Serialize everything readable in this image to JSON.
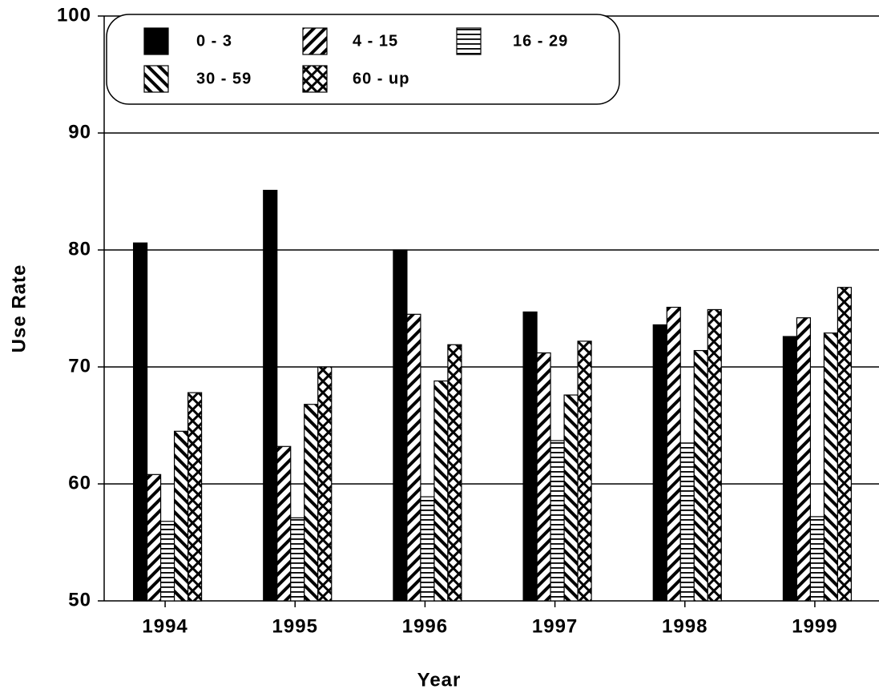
{
  "chart_data": {
    "type": "bar",
    "x_label": "Year",
    "y_label": "Use Rate",
    "categories": [
      "1994",
      "1995",
      "1996",
      "1997",
      "1998",
      "1999"
    ],
    "series": [
      {
        "name": "0 - 3",
        "color": "#000000",
        "pattern": "solid",
        "values": [
          80.6,
          85.1,
          80.0,
          74.7,
          73.6,
          72.6
        ]
      },
      {
        "name": "4 - 15",
        "color": "#000000",
        "pattern": "diagonal-down",
        "values": [
          60.8,
          63.2,
          74.5,
          71.2,
          75.1,
          74.2
        ]
      },
      {
        "name": "16 - 29",
        "color": "#000000",
        "pattern": "horizontal",
        "values": [
          56.8,
          57.1,
          58.9,
          63.7,
          63.5,
          57.2
        ]
      },
      {
        "name": "30 - 59",
        "color": "#000000",
        "pattern": "diagonal-up",
        "values": [
          64.5,
          66.8,
          68.8,
          67.6,
          71.4,
          72.9
        ]
      },
      {
        "name": "60 - up",
        "color": "#000000",
        "pattern": "crosshatch",
        "values": [
          67.8,
          70.0,
          71.9,
          72.2,
          74.9,
          76.8
        ]
      }
    ],
    "ylim": [
      50,
      100
    ],
    "yticks": [
      50,
      60,
      70,
      80,
      90,
      100
    ],
    "grid": true,
    "legend": "top-left"
  }
}
